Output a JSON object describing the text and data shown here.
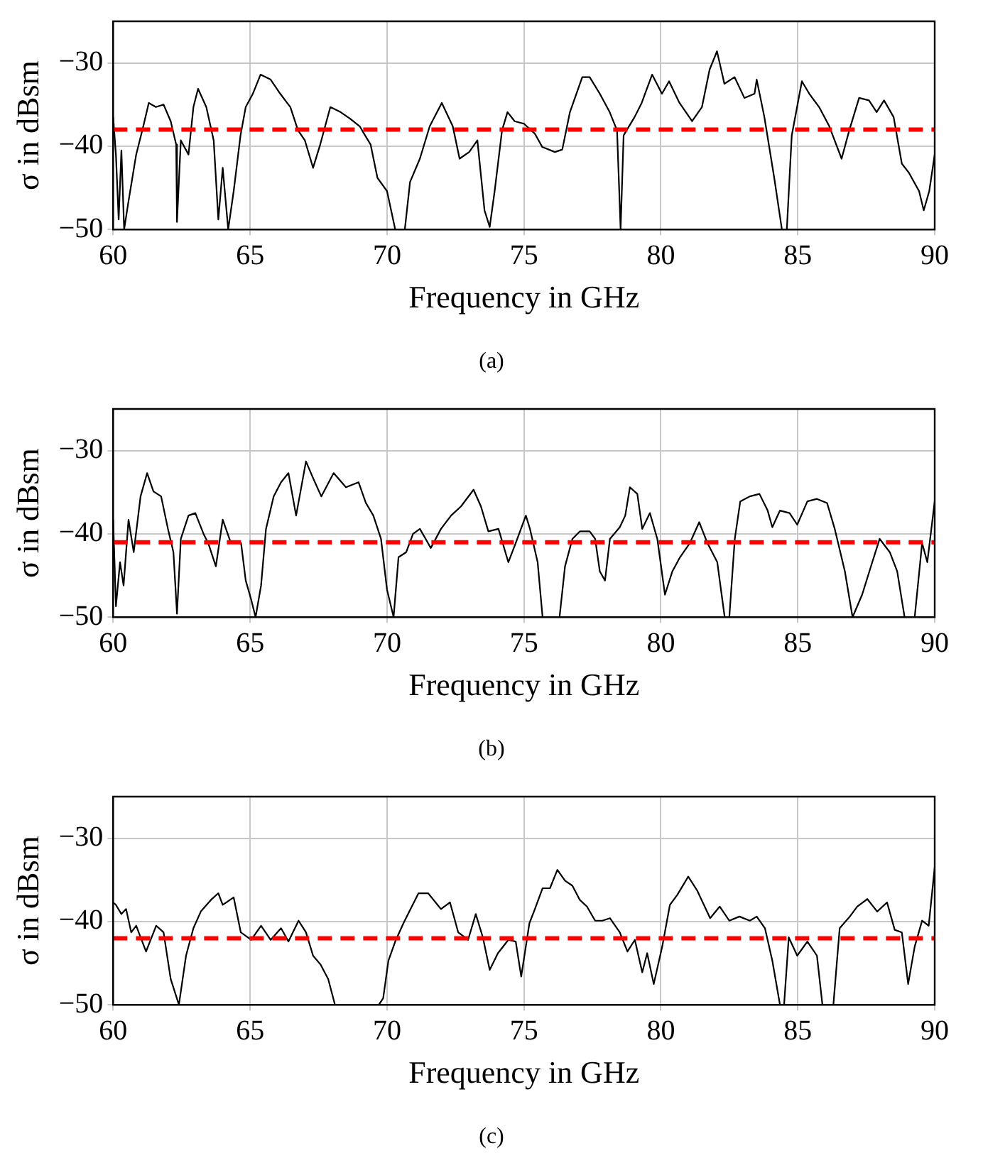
{
  "chart_data": [
    {
      "type": "line",
      "xlabel": "Frequency in GHz",
      "ylabel": "σ in dBsm",
      "annotations": [
        "(a)"
      ],
      "xlim": [
        60,
        90
      ],
      "xticks": [
        60,
        65,
        70,
        75,
        80,
        85,
        90
      ],
      "ylim": [
        -50,
        -25
      ],
      "yticks": [
        -50,
        -40,
        -30
      ],
      "grid": true,
      "marker": "none",
      "line_style": "solid",
      "ref_lines": [
        {
          "axis": "y",
          "value": -38,
          "color": "#ff0000",
          "line_style": "dashed"
        }
      ],
      "x": [
        60,
        60.1,
        60.2,
        60.3,
        60.4,
        60.56,
        60.84,
        61.1,
        61.3,
        61.56,
        61.84,
        62.1,
        62.3,
        62.33,
        62.47,
        62.75,
        62.93,
        63.1,
        63.4,
        63.67,
        63.84,
        64,
        64.2,
        64.4,
        64.65,
        64.84,
        65.1,
        65.38,
        65.75,
        66.1,
        66.47,
        66.75,
        67,
        67.3,
        67.56,
        67.93,
        68.3,
        68.65,
        69,
        69.4,
        69.65,
        70,
        70.3,
        70.65,
        70.84,
        71.2,
        71.56,
        72,
        72.4,
        72.65,
        73,
        73.3,
        73.56,
        73.75,
        73.93,
        74.2,
        74.4,
        74.66,
        75,
        75.4,
        75.67,
        76.13,
        76.4,
        76.68,
        77.13,
        77.4,
        77.77,
        78.13,
        78.4,
        78.53,
        78.64,
        79.04,
        79.3,
        79.68,
        80.04,
        80.3,
        80.68,
        81.14,
        81.5,
        81.78,
        82.05,
        82.32,
        82.69,
        83.05,
        83.42,
        83.5,
        83.78,
        84.14,
        84.42,
        84.6,
        84.78,
        85.15,
        85.42,
        85.78,
        86.15,
        86.6,
        86.88,
        87.24,
        87.6,
        87.88,
        88.15,
        88.5,
        88.8,
        89.06,
        89.43,
        89.6,
        89.8,
        90
      ],
      "series": [
        {
          "color": "#000000",
          "values": [
            -36.5,
            -41,
            -48.8,
            -40.5,
            -50,
            -46.6,
            -41,
            -37.6,
            -34.8,
            -35.3,
            -35,
            -37,
            -39.8,
            -49.1,
            -39.3,
            -41,
            -35.3,
            -33.1,
            -35.3,
            -39.3,
            -48.8,
            -42.6,
            -50,
            -45.4,
            -38.7,
            -35.3,
            -33.7,
            -31.4,
            -32,
            -33.7,
            -35.3,
            -38.1,
            -39.3,
            -42.6,
            -39.8,
            -35.3,
            -35.9,
            -36.7,
            -37.6,
            -39.8,
            -43.8,
            -45.4,
            -50,
            -50,
            -44.3,
            -41.5,
            -37.6,
            -34.8,
            -37.6,
            -41.5,
            -40.7,
            -39.3,
            -47.7,
            -49.7,
            -45.4,
            -38.1,
            -35.9,
            -37,
            -37.3,
            -38.5,
            -40.1,
            -40.7,
            -40.4,
            -35.9,
            -31.7,
            -31.7,
            -33.7,
            -35.9,
            -38.1,
            -50,
            -38.7,
            -36.5,
            -34.8,
            -31.4,
            -33.7,
            -32.2,
            -34.8,
            -37,
            -35.3,
            -30.8,
            -28.6,
            -32.5,
            -31.7,
            -34.2,
            -33.7,
            -32,
            -36.5,
            -43.8,
            -50,
            -50,
            -38.7,
            -32.2,
            -33.7,
            -35.3,
            -37.6,
            -41.5,
            -38.1,
            -34.2,
            -34.5,
            -35.9,
            -34.5,
            -36.5,
            -42.1,
            -43.2,
            -45.4,
            -47.7,
            -45.4,
            -41
          ]
        }
      ]
    },
    {
      "type": "line",
      "xlabel": "Frequency in GHz",
      "ylabel": "σ in dBsm",
      "annotations": [
        "(b)"
      ],
      "xlim": [
        60,
        90
      ],
      "xticks": [
        60,
        65,
        70,
        75,
        80,
        85,
        90
      ],
      "ylim": [
        -50,
        -25
      ],
      "yticks": [
        -50,
        -40,
        -30
      ],
      "grid": true,
      "marker": "none",
      "line_style": "solid",
      "ref_lines": [
        {
          "axis": "y",
          "value": -41,
          "color": "#ff0000",
          "line_style": "dashed"
        }
      ],
      "x": [
        60,
        60.1,
        60.25,
        60.38,
        60.56,
        60.75,
        61,
        61.24,
        61.47,
        61.75,
        62,
        62.2,
        62.33,
        62.47,
        62.75,
        63,
        63.3,
        63.47,
        63.75,
        64,
        64.3,
        64.67,
        64.84,
        65.04,
        65.2,
        65.4,
        65.58,
        65.86,
        66.13,
        66.4,
        66.68,
        67.04,
        67.3,
        67.6,
        68.05,
        68.5,
        68.96,
        69.23,
        69.5,
        69.78,
        70,
        70.24,
        70.42,
        70.7,
        70.95,
        71.2,
        71.6,
        71.97,
        72.34,
        72.7,
        73.16,
        73.43,
        73.7,
        74.07,
        74.43,
        74.7,
        75.07,
        75.22,
        75.5,
        75.68,
        76.3,
        76.5,
        76.77,
        77.04,
        77.4,
        77.6,
        77.77,
        77.96,
        78.14,
        78.5,
        78.7,
        78.87,
        79.14,
        79.32,
        79.6,
        79.87,
        80.15,
        80.42,
        80.7,
        81.06,
        81.4,
        81.7,
        82.06,
        82.33,
        82.5,
        82.7,
        82.9,
        83.25,
        83.6,
        83.9,
        84.07,
        84.35,
        84.7,
        84.98,
        85.35,
        85.7,
        86.07,
        86.35,
        86.72,
        87,
        87.35,
        87.72,
        87.99,
        88.36,
        88.63,
        88.9,
        89.27,
        89.54,
        89.73,
        90
      ],
      "series": [
        {
          "color": "#000000",
          "values": [
            -38.3,
            -48.7,
            -43.4,
            -46.2,
            -38.3,
            -42.2,
            -35.5,
            -32.7,
            -34.9,
            -35.5,
            -39.4,
            -42.2,
            -49.6,
            -40.6,
            -37.8,
            -37.5,
            -40,
            -41.1,
            -43.9,
            -38.3,
            -41.1,
            -41.1,
            -45.6,
            -47.9,
            -50,
            -46.2,
            -39.4,
            -35.5,
            -33.8,
            -32.7,
            -37.8,
            -31.3,
            -33.3,
            -35.5,
            -32.7,
            -34.4,
            -33.8,
            -36.3,
            -37.8,
            -40.6,
            -46.7,
            -50,
            -42.8,
            -42.2,
            -40,
            -39.4,
            -41.7,
            -39.4,
            -37.8,
            -36.7,
            -34.7,
            -36.7,
            -39.7,
            -39.4,
            -43.4,
            -41.1,
            -37.8,
            -39.4,
            -43.4,
            -50,
            -50,
            -43.9,
            -40.6,
            -39.7,
            -39.7,
            -40.6,
            -44.5,
            -45.6,
            -40.6,
            -39.2,
            -37.8,
            -34.4,
            -35.2,
            -39.4,
            -37.5,
            -40.6,
            -47.3,
            -44.5,
            -42.8,
            -41.1,
            -38.6,
            -41.1,
            -43.4,
            -50,
            -50,
            -40.6,
            -36.1,
            -35.5,
            -35.2,
            -37.2,
            -39.2,
            -37.2,
            -37.5,
            -38.9,
            -36.1,
            -35.8,
            -36.3,
            -39.4,
            -44.5,
            -50,
            -47.3,
            -43.4,
            -40.6,
            -42.2,
            -44.5,
            -50,
            -50,
            -41.1,
            -43.4,
            -36.1
          ]
        }
      ]
    },
    {
      "type": "line",
      "xlabel": "Frequency in GHz",
      "ylabel": "σ in dBsm",
      "annotations": [
        "(c)"
      ],
      "xlim": [
        60,
        90
      ],
      "xticks": [
        60,
        65,
        70,
        75,
        80,
        85,
        90
      ],
      "ylim": [
        -50,
        -25
      ],
      "yticks": [
        -50,
        -40,
        -30
      ],
      "grid": true,
      "marker": "none",
      "line_style": "solid",
      "ref_lines": [
        {
          "axis": "y",
          "value": -42,
          "color": "#ff0000",
          "line_style": "dashed"
        }
      ],
      "x": [
        60,
        60.1,
        60.3,
        60.47,
        60.66,
        60.84,
        61.2,
        61.57,
        61.84,
        62.1,
        62.4,
        62.66,
        62.93,
        63.2,
        63.57,
        63.84,
        64,
        64.4,
        64.66,
        65.04,
        65.4,
        65.75,
        66.13,
        66.4,
        66.77,
        67.04,
        67.3,
        67.58,
        67.85,
        68.1,
        69.7,
        69.86,
        70.05,
        70.3,
        70.6,
        70.86,
        71.15,
        71.5,
        71.97,
        72.3,
        72.6,
        72.96,
        73.24,
        73.5,
        73.75,
        74.05,
        74.43,
        74.7,
        74.9,
        75.2,
        75.4,
        75.68,
        75.95,
        76.22,
        76.5,
        76.77,
        77.04,
        77.3,
        77.6,
        77.86,
        78.14,
        78.5,
        78.78,
        79.05,
        79.32,
        79.5,
        79.74,
        80.05,
        80.33,
        80.6,
        81,
        81.33,
        81.8,
        82.15,
        82.5,
        82.87,
        83.25,
        83.5,
        83.8,
        84.07,
        84.35,
        84.5,
        84.67,
        84.98,
        85.35,
        85.7,
        85.9,
        86.3,
        86.53,
        86.9,
        87.17,
        87.54,
        87.9,
        88.26,
        88.54,
        88.8,
        89.03,
        89.27,
        89.54,
        89.78,
        90
      ],
      "series": [
        {
          "color": "#000000",
          "values": [
            -37.7,
            -38,
            -39.1,
            -38.5,
            -41.3,
            -40.5,
            -43.6,
            -40.5,
            -41.3,
            -46.9,
            -50,
            -44.1,
            -40.8,
            -38.8,
            -37.4,
            -36.6,
            -38,
            -37.1,
            -41.3,
            -42.2,
            -40.5,
            -42.2,
            -40.8,
            -42.4,
            -39.9,
            -41.3,
            -44.1,
            -45.2,
            -46.9,
            -50,
            -50,
            -49.2,
            -44.7,
            -42.4,
            -40.2,
            -38.5,
            -36.6,
            -36.6,
            -38.5,
            -37.7,
            -41.3,
            -42.2,
            -39.1,
            -41.9,
            -45.8,
            -43.8,
            -42.2,
            -42.4,
            -46.6,
            -40.2,
            -38.5,
            -36,
            -36,
            -33.8,
            -35.1,
            -35.7,
            -37.4,
            -38.2,
            -39.9,
            -39.9,
            -39.6,
            -41.3,
            -43.6,
            -42.2,
            -46.1,
            -43.8,
            -47.5,
            -43,
            -38,
            -36.8,
            -34.6,
            -36.3,
            -39.6,
            -38.2,
            -39.9,
            -39.4,
            -39.9,
            -39.4,
            -40.8,
            -44.7,
            -50,
            -50,
            -41.9,
            -44.1,
            -42.4,
            -44.1,
            -50,
            -50,
            -40.8,
            -39.4,
            -38.2,
            -37.3,
            -38.8,
            -37.7,
            -41,
            -41.3,
            -47.5,
            -43,
            -39.9,
            -40.5,
            -33.5
          ]
        }
      ]
    }
  ]
}
